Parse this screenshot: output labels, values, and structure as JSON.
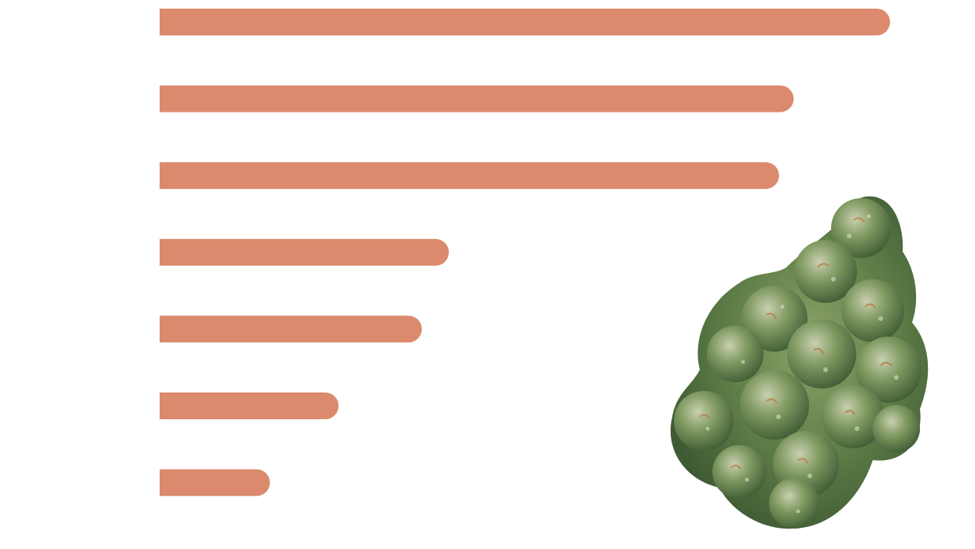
{
  "chart_data": {
    "type": "bar",
    "orientation": "horizontal",
    "title": "",
    "xlabel": "",
    "ylabel": "",
    "categories": [
      "",
      "",
      "",
      "",
      "",
      "",
      ""
    ],
    "values": [
      100,
      86.8,
      84.8,
      39.6,
      35.9,
      24.5,
      15.1
    ],
    "xlim": [
      0,
      100
    ],
    "grid": false,
    "legend": "none",
    "bar_color": "#DB8A6D"
  },
  "illustration": {
    "icon": "cannabis-bud-icon",
    "colors": {
      "leaf_dark": "#3E5A34",
      "leaf_mid": "#5F7E47",
      "leaf_light": "#8EA46A",
      "trichome": "#C9D0B0",
      "pistil": "#B9773F"
    }
  }
}
